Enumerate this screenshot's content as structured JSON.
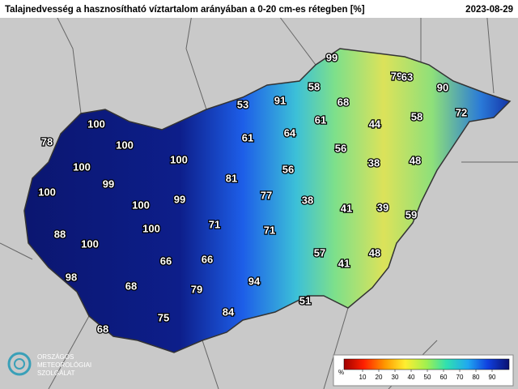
{
  "title": "Talajnedvesség a hasznosítható víztartalom arányában a 0-20 cm-es rétegben [%]",
  "date": "2023-08-29",
  "stations": [
    99,
    79,
    63,
    90,
    72,
    58,
    91,
    53,
    68,
    58,
    61,
    44,
    64,
    61,
    100,
    78,
    100,
    56,
    100,
    38,
    48,
    100,
    56,
    81,
    99,
    100,
    77,
    38,
    100,
    99,
    41,
    39,
    59,
    71,
    71,
    100,
    88,
    100,
    57,
    48,
    66,
    66,
    41,
    98,
    68,
    94,
    79,
    84,
    75,
    51,
    68
  ],
  "legend": {
    "unit": "%",
    "ticks": [
      10,
      20,
      30,
      40,
      50,
      60,
      70,
      80,
      90
    ]
  },
  "logo": [
    "ORSZÁGOS",
    "METEOROLÓGIAI",
    "SZOLGÁLAT"
  ]
}
